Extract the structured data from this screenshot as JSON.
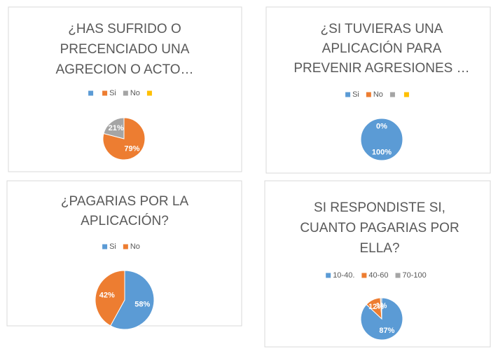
{
  "chart_data": [
    {
      "type": "pie",
      "title": [
        "¿HAS SUFRIDO O",
        "PRECENCIADO UNA",
        "AGRECION O ACTO…"
      ],
      "categories": [
        null,
        "Si",
        "No",
        null
      ],
      "values": [
        0,
        79,
        21,
        0
      ],
      "value_labels": [
        null,
        "79%",
        "21%",
        null
      ],
      "colors": [
        "#5b9bd5",
        "#ed7d31",
        "#a5a5a5",
        "#ffc000"
      ]
    },
    {
      "type": "pie",
      "title": [
        "¿SI TUVIERAS UNA",
        "APLICACIÓN PARA",
        "PREVENIR AGRESIONES …"
      ],
      "categories": [
        "Si",
        "No",
        null,
        null
      ],
      "values": [
        100,
        0,
        0,
        0
      ],
      "value_labels": [
        "100%",
        "0%",
        null,
        null
      ],
      "colors": [
        "#5b9bd5",
        "#ed7d31",
        "#a5a5a5",
        "#ffc000"
      ]
    },
    {
      "type": "pie",
      "title": [
        "¿PAGARIAS POR LA",
        "APLICACIÓN?"
      ],
      "categories": [
        "Si",
        "No"
      ],
      "values": [
        58,
        42
      ],
      "value_labels": [
        "58%",
        "42%"
      ],
      "colors": [
        "#5b9bd5",
        "#ed7d31"
      ]
    },
    {
      "type": "pie",
      "title": [
        "SI RESPONDISTE SI,",
        "CUANTO PAGARIAS POR",
        "ELLA?"
      ],
      "categories": [
        "10-40.",
        "40-60",
        "70-100"
      ],
      "values": [
        87,
        12,
        1
      ],
      "value_labels": [
        "87%",
        "12%",
        "1%"
      ],
      "colors": [
        "#5b9bd5",
        "#ed7d31",
        "#a5a5a5"
      ]
    }
  ]
}
